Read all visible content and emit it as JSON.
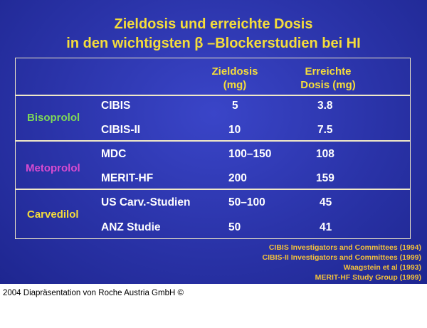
{
  "title": {
    "line1": "Zieldosis und erreichte Dosis",
    "line2": "in den wichtigsten β –Blockerstudien bei HI"
  },
  "table": {
    "headers": {
      "target_dose": [
        "Zieldosis",
        "(mg)"
      ],
      "achieved_dose": [
        "Erreichte",
        "Dosis (mg)"
      ]
    },
    "groups": [
      {
        "name": "Bisoprolol",
        "color": "#7ed957",
        "rows": [
          {
            "study": "CIBIS",
            "target": "5",
            "achieved": "3.8"
          },
          {
            "study": "CIBIS-II",
            "target": "10",
            "achieved": "7.5"
          }
        ]
      },
      {
        "name": "Metoprolol",
        "color": "#d84bd0",
        "rows": [
          {
            "study": "MDC",
            "target": "100–150",
            "achieved": "108"
          },
          {
            "study": "MERIT-HF",
            "target": "200",
            "achieved": "159"
          }
        ]
      },
      {
        "name": "Carvedilol",
        "color": "#f5dd3a",
        "rows": [
          {
            "study": "US Carv.-Studien",
            "target": "50–100",
            "achieved": "45"
          },
          {
            "study": "ANZ Studie",
            "target": "50",
            "achieved": "41"
          }
        ]
      }
    ]
  },
  "references": [
    "CIBIS Investigators and Committees (1994)",
    "CIBIS-II Investigators and Committees (1999)",
    "Waagstein et al (1993)",
    "MERIT-HF Study Group (1999)"
  ],
  "footer": "2004 Diapräsentation von Roche Austria GmbH ©"
}
